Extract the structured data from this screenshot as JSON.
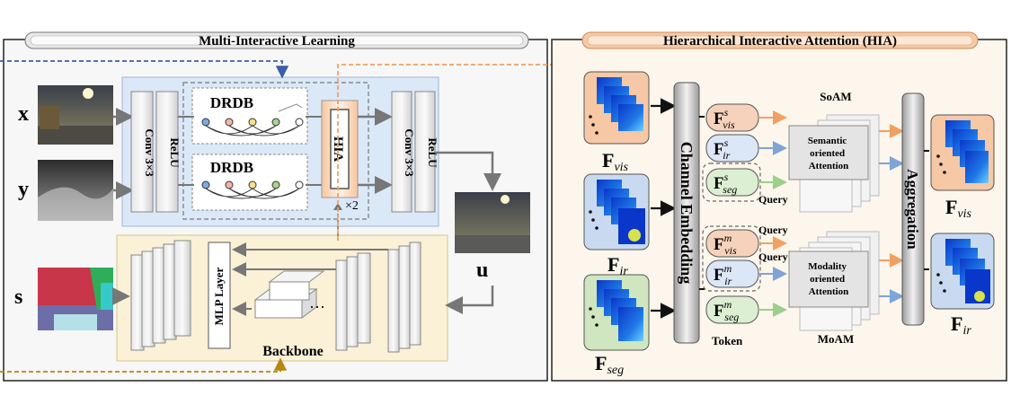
{
  "left_panel": {
    "title": "Multi-Interactive Learning",
    "inputs": {
      "x": "x",
      "y": "y",
      "s": "s",
      "u": "u"
    },
    "conv_left": "Conv 3×3",
    "relu_left": "ReLU",
    "drdb_top": "DRDB",
    "drdb_bottom": "DRDB",
    "hia_block": "HIA",
    "times_two": "×2",
    "conv_right": "Conv 3×3",
    "relu_right": "ReLU",
    "mlp_layer": "MLP Layer",
    "dots": "···",
    "backbone": "Backbone"
  },
  "right_panel": {
    "title": "Hierarchical Interactive Attention (HIA)",
    "inputs": {
      "vis": {
        "base": "F",
        "sub": "vis"
      },
      "ir": {
        "base": "F",
        "sub": "ir"
      },
      "seg": {
        "base": "F",
        "sub": "seg"
      }
    },
    "channel_embedding": "Channel Embedding",
    "tokens_s": [
      {
        "base": "F",
        "sup": "s",
        "sub": "vis"
      },
      {
        "base": "F",
        "sup": "s",
        "sub": "ir"
      },
      {
        "base": "F",
        "sup": "s",
        "sub": "seg"
      }
    ],
    "tokens_m": [
      {
        "base": "F",
        "sup": "m",
        "sub": "vis"
      },
      {
        "base": "F",
        "sup": "m",
        "sub": "ir"
      },
      {
        "base": "F",
        "sup": "m",
        "sub": "seg"
      }
    ],
    "query": "Query",
    "token": "Token",
    "soam": "SoAM",
    "moam": "MoAM",
    "semantic_attention": [
      "Semantic",
      "oriented",
      "Attention"
    ],
    "modality_attention": [
      "Modality",
      "oriented",
      "Attention"
    ],
    "aggregation": "Aggregation",
    "outputs": {
      "vis": {
        "base": "F",
        "sub": "vis"
      },
      "ir": {
        "base": "F",
        "sub": "ir"
      }
    }
  },
  "colors": {
    "blue_dash": "#3a5fa6",
    "orange_dash": "#f2a062",
    "gold_dash": "#b8860b",
    "blue_region": "#dbe8f7",
    "yellow_region": "#faf1d6",
    "right_bg": "#fdf6ec"
  }
}
